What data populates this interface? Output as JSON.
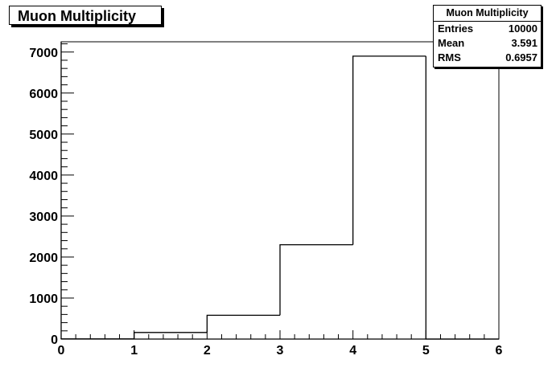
{
  "title": "Muon Multiplicity",
  "stats": {
    "title": "Muon Multiplicity",
    "rows": [
      {
        "label": "Entries",
        "value": "10000"
      },
      {
        "label": "Mean",
        "value": "3.591"
      },
      {
        "label": "RMS",
        "value": "0.6957"
      }
    ]
  },
  "chart_data": {
    "type": "bar",
    "subtype": "histogram",
    "title": "Muon Multiplicity",
    "xlabel": "",
    "ylabel": "",
    "bin_edges": [
      0,
      1,
      2,
      3,
      4,
      5,
      6
    ],
    "values": [
      5,
      160,
      580,
      2300,
      6900,
      0
    ],
    "xlim": [
      0,
      6
    ],
    "ylim": [
      0,
      7250
    ],
    "x_ticks": [
      "0",
      "1",
      "2",
      "3",
      "4",
      "5",
      "6"
    ],
    "y_ticks": [
      "0",
      "1000",
      "2000",
      "3000",
      "4000",
      "5000",
      "6000",
      "7000"
    ],
    "grid": false,
    "legend": "none"
  }
}
